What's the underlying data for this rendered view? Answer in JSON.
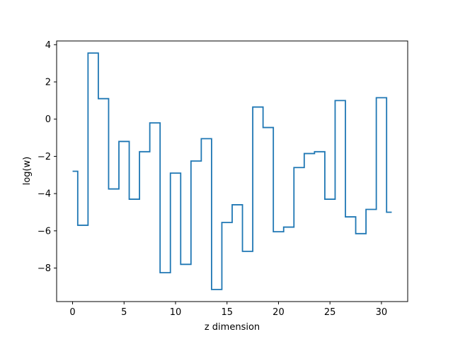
{
  "chart_data": {
    "type": "line",
    "drawstyle": "steps-mid",
    "xlabel": "z dimension",
    "ylabel": "log(w)",
    "xlim": [
      -1.55,
      32.55
    ],
    "ylim": [
      -9.8,
      4.2
    ],
    "xticks": [
      0,
      5,
      10,
      15,
      20,
      25,
      30
    ],
    "yticks": [
      -8,
      -6,
      -4,
      -2,
      0,
      2,
      4
    ],
    "xtick_labels": [
      "0",
      "5",
      "10",
      "15",
      "20",
      "25",
      "30"
    ],
    "ytick_labels": [
      "−8",
      "−6",
      "−4",
      "−2",
      "0",
      "2",
      "4"
    ],
    "grid": false,
    "series": [
      {
        "color": "#1f77b4",
        "x": [
          0,
          1,
          2,
          3,
          4,
          5,
          6,
          7,
          8,
          9,
          10,
          11,
          12,
          13,
          14,
          15,
          16,
          17,
          18,
          19,
          20,
          21,
          22,
          23,
          24,
          25,
          26,
          27,
          28,
          29,
          30,
          31
        ],
        "values": [
          -2.8,
          -5.7,
          3.55,
          1.1,
          -3.75,
          -1.2,
          -4.3,
          -1.75,
          -0.2,
          -8.25,
          -2.9,
          -7.8,
          -2.25,
          -1.05,
          -9.15,
          -5.55,
          -4.6,
          -7.1,
          0.65,
          -0.45,
          -6.05,
          -5.8,
          -2.6,
          -1.85,
          -1.75,
          -4.3,
          1.0,
          -5.25,
          -6.15,
          -4.85,
          1.15,
          -5.0
        ]
      }
    ]
  }
}
